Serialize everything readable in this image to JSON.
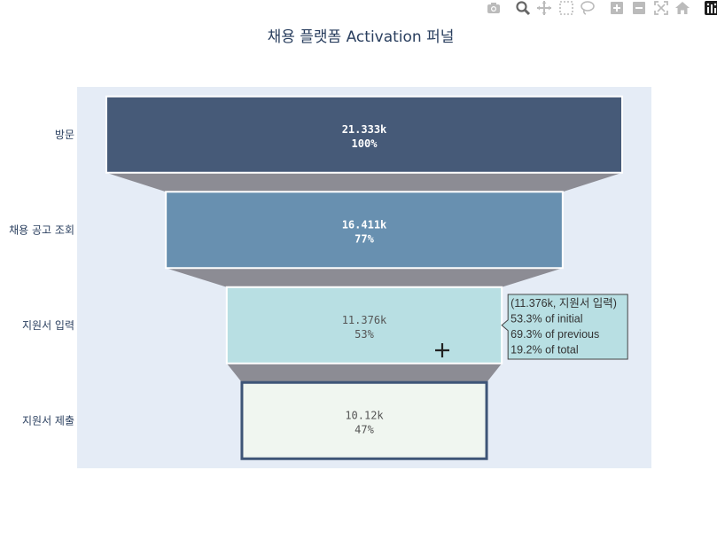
{
  "chart_data": {
    "type": "funnel",
    "title": "채용 플랫폼 Activation 퍼널",
    "stages": [
      {
        "label": "방문",
        "value": 21333,
        "value_text": "21.333k",
        "percent_text": "100%",
        "color": "#465a78",
        "text_color": "#ffffff"
      },
      {
        "label": "채용 공고 조회",
        "value": 16411,
        "value_text": "16.411k",
        "percent_text": "77%",
        "color": "#6890b0",
        "text_color": "#ffffff"
      },
      {
        "label": "지원서 입력",
        "value": 11376,
        "value_text": "11.376k",
        "percent_text": "53%",
        "color": "#b8dfe3",
        "text_color": "#555555"
      },
      {
        "label": "지원서 제출",
        "value": 10120,
        "value_text": "10.12k",
        "percent_text": "47%",
        "color": "#f0f6f0",
        "text_color": "#555555"
      }
    ],
    "hover": {
      "stage_index": 2,
      "lines": [
        "(11.376k, 지원서 입력)",
        "53.3% of initial",
        "69.3% of previous",
        "19.2% of total"
      ],
      "bg_color": "#b8dfe3"
    },
    "plot_bg": "#e5ecf6",
    "connector_color": "#8c8c94"
  },
  "modebar": {
    "buttons": [
      "camera-icon",
      "zoom-icon",
      "pan-icon",
      "box-select-icon",
      "lasso-icon",
      "zoom-in-icon",
      "zoom-out-icon",
      "autoscale-icon",
      "reset-axes-icon",
      "plotly-logo-icon"
    ]
  }
}
